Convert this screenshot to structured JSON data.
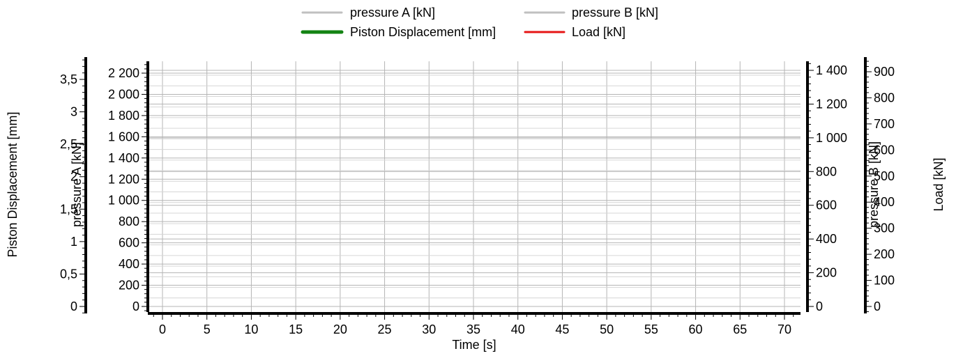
{
  "chart_data": {
    "type": "line",
    "title": "",
    "x_axis": {
      "label": "Time [s]",
      "range": [
        -1.3,
        71.2
      ],
      "ticks": [
        0,
        5,
        10,
        15,
        20,
        25,
        30,
        35,
        40,
        45,
        50,
        55,
        60,
        65,
        70
      ],
      "tick_labels": [
        "0",
        "5",
        "10",
        "15",
        "20",
        "25",
        "30",
        "35",
        "40",
        "45",
        "50",
        "55",
        "60",
        "65",
        "70"
      ],
      "grid": true
    },
    "y_axes": [
      {
        "id": "piston",
        "label": "Piston Displacement [mm]",
        "side": "left-outer",
        "range": [
          -0.03,
          3.9
        ],
        "ticks": [
          0,
          0.5,
          1,
          1.5,
          2,
          2.5,
          3,
          3.5
        ],
        "tick_labels": [
          "0",
          "0,5",
          "1",
          "1,5",
          "2",
          "2,5",
          "3",
          "3,5"
        ]
      },
      {
        "id": "pressureA",
        "label": "pressure A [kN]",
        "side": "left-inner",
        "range": [
          -20,
          2300
        ],
        "ticks": [
          0,
          200,
          400,
          600,
          800,
          1000,
          1200,
          1400,
          1600,
          1800,
          2000,
          2200
        ],
        "tick_labels": [
          "0",
          "200",
          "400",
          "600",
          "800",
          "1 000",
          "1 200",
          "1 400",
          "1 600",
          "1 800",
          "2 000",
          "2 200"
        ],
        "grid": true
      },
      {
        "id": "pressureB",
        "label": "pressure B [kN]",
        "side": "right-inner",
        "range": [
          -10,
          1490
        ],
        "ticks": [
          0,
          200,
          400,
          600,
          800,
          1000,
          1200,
          1400
        ],
        "tick_labels": [
          "0",
          "200",
          "400",
          "600",
          "800",
          "1 000",
          "1 200",
          "1 400"
        ],
        "grid": true
      },
      {
        "id": "load",
        "label": "Load [kN]",
        "side": "right-outer",
        "range": [
          -5,
          960
        ],
        "ticks": [
          0,
          100,
          200,
          300,
          400,
          500,
          600,
          700,
          800,
          900
        ],
        "tick_labels": [
          "0",
          "100",
          "200",
          "300",
          "400",
          "500",
          "600",
          "700",
          "800",
          "900"
        ]
      }
    ],
    "legend": {
      "placement": "top-center",
      "entries": [
        {
          "name": "pressure A [kN]",
          "color": "#c0c0c0"
        },
        {
          "name": "pressure B [kN]",
          "color": "#c0c0c0"
        },
        {
          "name": "Piston Displacement [mm]",
          "color": "#138313"
        },
        {
          "name": "Load [kN]",
          "color": "#e61414"
        }
      ]
    },
    "series": [
      {
        "name": "pressure A [kN]",
        "axis": "pressureA",
        "color": "#c0c0c0",
        "x": [],
        "y": []
      },
      {
        "name": "pressure B [kN]",
        "axis": "pressureB",
        "color": "#c0c0c0",
        "x": [],
        "y": []
      },
      {
        "name": "Piston Displacement [mm]",
        "axis": "piston",
        "color": "#138313",
        "x": [],
        "y": []
      },
      {
        "name": "Load [kN]",
        "axis": "load",
        "color": "#e61414",
        "x": [],
        "y": []
      }
    ]
  }
}
